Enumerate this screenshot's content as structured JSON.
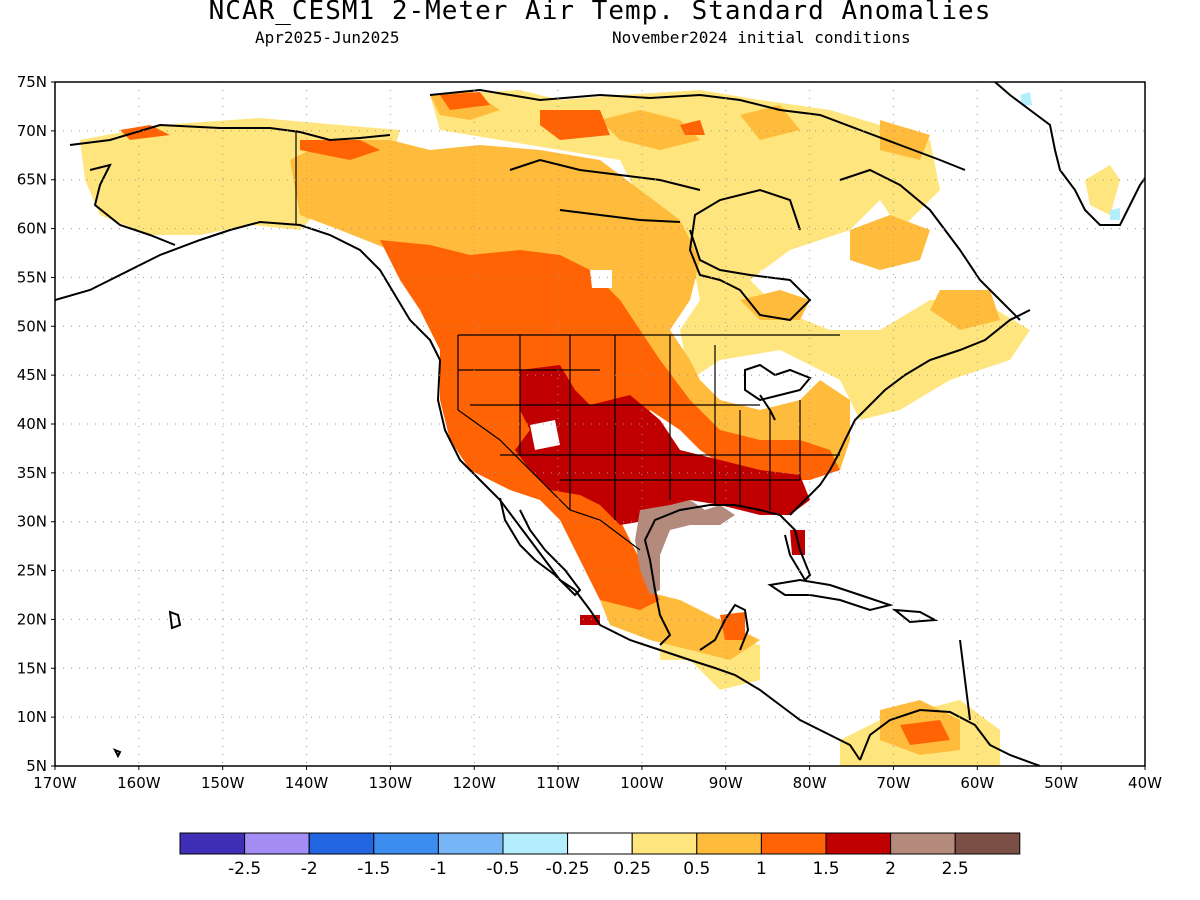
{
  "title": "NCAR_CESM1 2-Meter Air Temp. Standard Anomalies",
  "period": "Apr2025-Jun2025",
  "init": "November2024 initial conditions",
  "lat_labels": [
    "75N",
    "70N",
    "65N",
    "60N",
    "55N",
    "50N",
    "45N",
    "40N",
    "35N",
    "30N",
    "25N",
    "20N",
    "15N",
    "10N",
    "5N"
  ],
  "lon_labels": [
    "170W",
    "160W",
    "150W",
    "140W",
    "130W",
    "120W",
    "110W",
    "100W",
    "90W",
    "80W",
    "70W",
    "60W",
    "50W",
    "40W"
  ],
  "colorbar": {
    "colors": [
      "#3f2fb6",
      "#a38cf4",
      "#2165e0",
      "#3b8ef0",
      "#77b6f6",
      "#b4eefc",
      "#ffffff",
      "#ffe57d",
      "#ffbb3c",
      "#ff6303",
      "#c00000",
      "#b48a7c",
      "#7b4f45"
    ],
    "labels": [
      "-2.5",
      "-2",
      "-1.5",
      "-1",
      "-0.5",
      "-0.25",
      "0.25",
      "0.5",
      "1",
      "1.5",
      "2",
      "2.5"
    ]
  },
  "anomaly_levels": {
    "0.25-0.5": "#ffe57d",
    "0.5-1": "#ffbb3c",
    "1-1.5": "#ff6303",
    "1.5-2": "#c00000",
    "2-2.5": "#b48a7c"
  }
}
